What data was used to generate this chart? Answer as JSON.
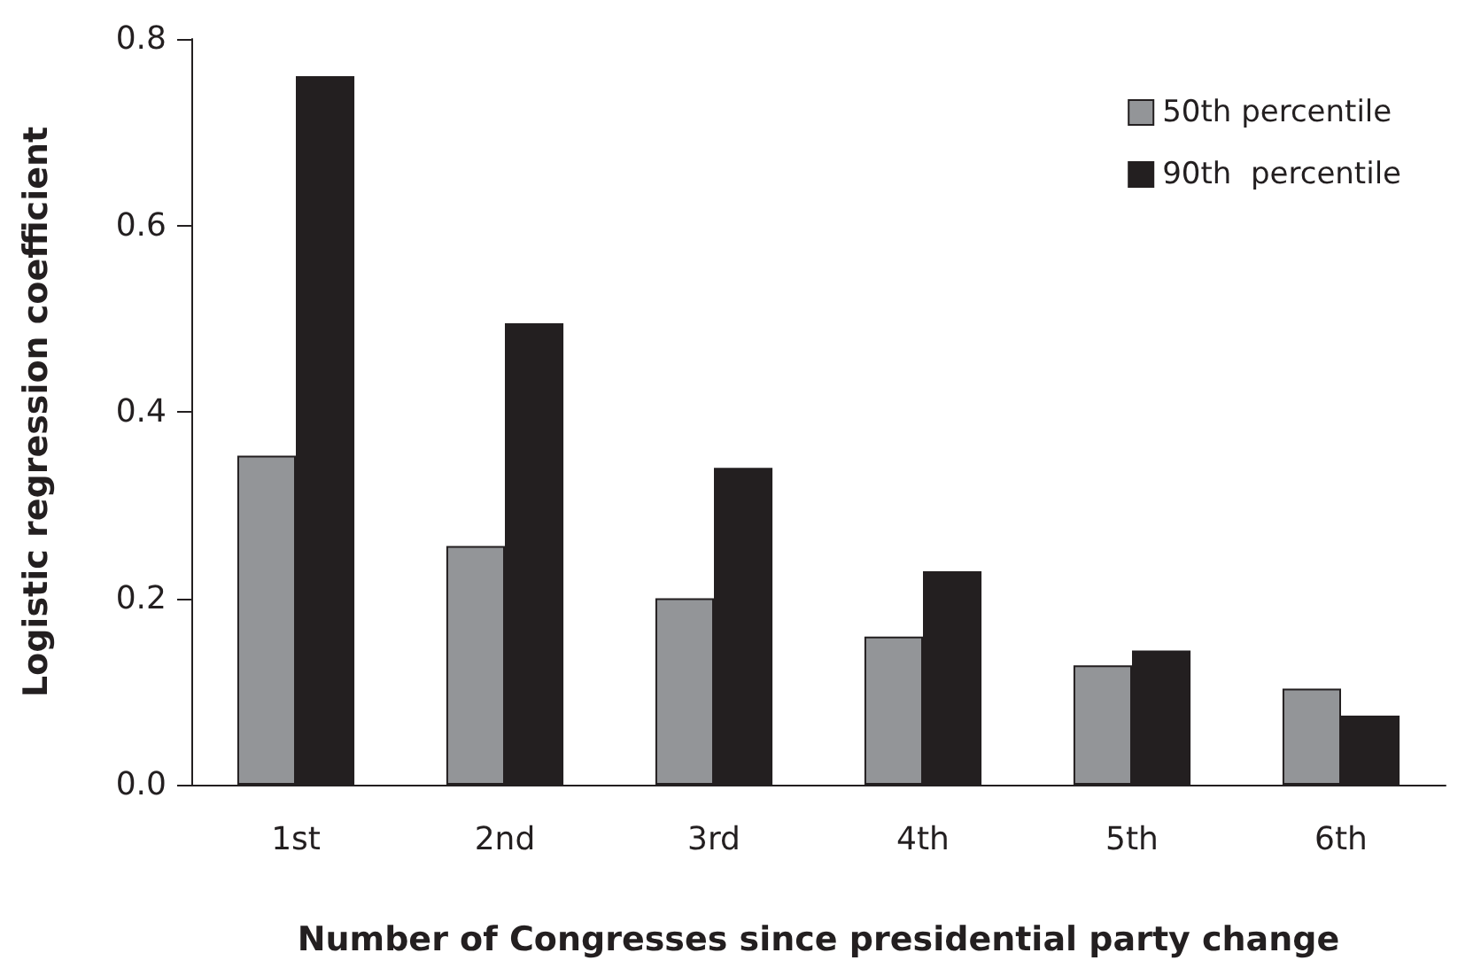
{
  "chart_data": {
    "type": "bar",
    "xlabel": "Number of Congresses since presidential party change",
    "ylabel": "Logistic regression coefficient",
    "categories": [
      "1st",
      "2nd",
      "3rd",
      "4th",
      "5th",
      "6th"
    ],
    "series": [
      {
        "name": "50th percentile",
        "color": "#939598",
        "values": [
          0.353,
          0.256,
          0.2,
          0.159,
          0.128,
          0.103
        ]
      },
      {
        "name": "90th  percentile",
        "color": "#231f20",
        "values": [
          0.76,
          0.495,
          0.34,
          0.229,
          0.144,
          0.074
        ]
      }
    ],
    "ylim": [
      0,
      0.8
    ],
    "yticks": [
      {
        "value": 0,
        "label": "0.0"
      },
      {
        "value": 0.2,
        "label": "0.2"
      },
      {
        "value": 0.4,
        "label": "0.4"
      },
      {
        "value": 0.6,
        "label": "0.6"
      },
      {
        "value": 0.8,
        "label": "0.8"
      }
    ],
    "grid": false,
    "legend": "top right"
  }
}
